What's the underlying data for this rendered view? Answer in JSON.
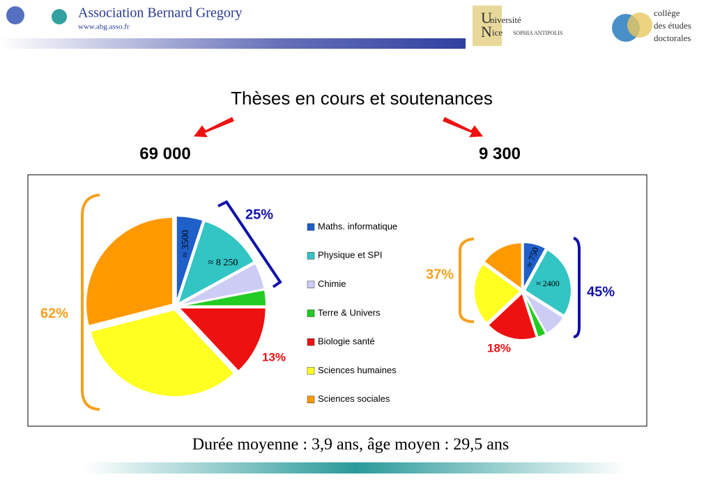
{
  "header": {
    "org": "Association Bernard Gregory",
    "url": "www.abg.asso.fr",
    "uni_1": "niversité",
    "uni_2": "ice",
    "uni_3": "SOPHIA ANTIPOLIS",
    "college_1": "collège",
    "college_2": "des études",
    "college_3": "doctorales"
  },
  "title": "Thèses en cours et soutenances",
  "chart_data": [
    {
      "type": "pie",
      "title": "69 000",
      "categories": [
        "Maths. informatique",
        "Physique et SPI",
        "Chimie",
        "Terre & Univers",
        "Biologie santé",
        "Sciences humaines",
        "Sciences sociales"
      ],
      "colors": [
        "#1f5fc8",
        "#33c4c4",
        "#ccccf5",
        "#22cc22",
        "#ee1111",
        "#ffff22",
        "#ff9900"
      ],
      "values": [
        5,
        12,
        5,
        3,
        13,
        33,
        29
      ],
      "annotations": [
        "≈ 3500",
        "≈ 8 250",
        "25%",
        "13%",
        "62%"
      ]
    },
    {
      "type": "pie",
      "title": "9 300",
      "values": [
        8,
        26,
        8,
        3,
        18,
        22,
        15
      ],
      "annotations": [
        "≈ 750",
        "≈ 2400",
        "45%",
        "18%",
        "37%"
      ]
    }
  ],
  "footer": "Durée moyenne : 3,9 ans, âge moyen : 29,5 ans"
}
